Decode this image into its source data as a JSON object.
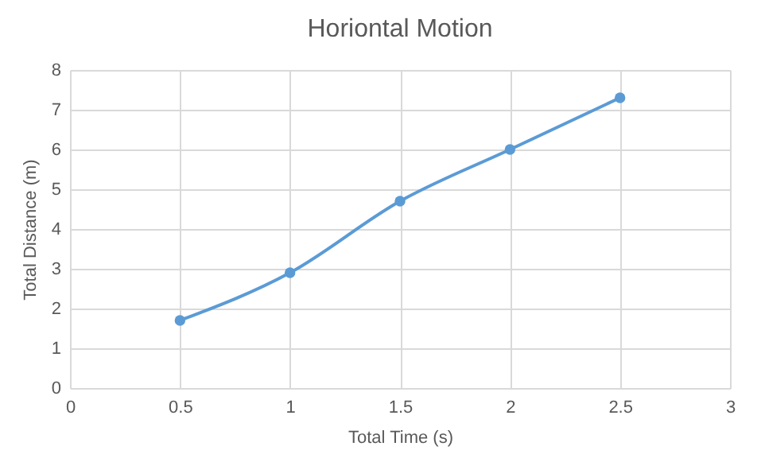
{
  "chart_data": {
    "type": "line",
    "title": "Horiontal Motion",
    "xlabel": "Total Time (s)",
    "ylabel": "Total Distance (m)",
    "x": [
      0.5,
      1,
      1.5,
      2,
      2.5
    ],
    "series": [
      {
        "color": "#5b9bd5",
        "values": [
          1.7,
          2.9,
          4.7,
          6.0,
          7.3
        ]
      }
    ],
    "xlim": [
      0,
      3
    ],
    "xticks": [
      0,
      0.5,
      1,
      1.5,
      2,
      2.5,
      3
    ],
    "ylim": [
      0,
      8
    ],
    "yticks": [
      0,
      1,
      2,
      3,
      4,
      5,
      6,
      7,
      8
    ],
    "grid": true,
    "marker": "circle",
    "line_style": "solid"
  }
}
